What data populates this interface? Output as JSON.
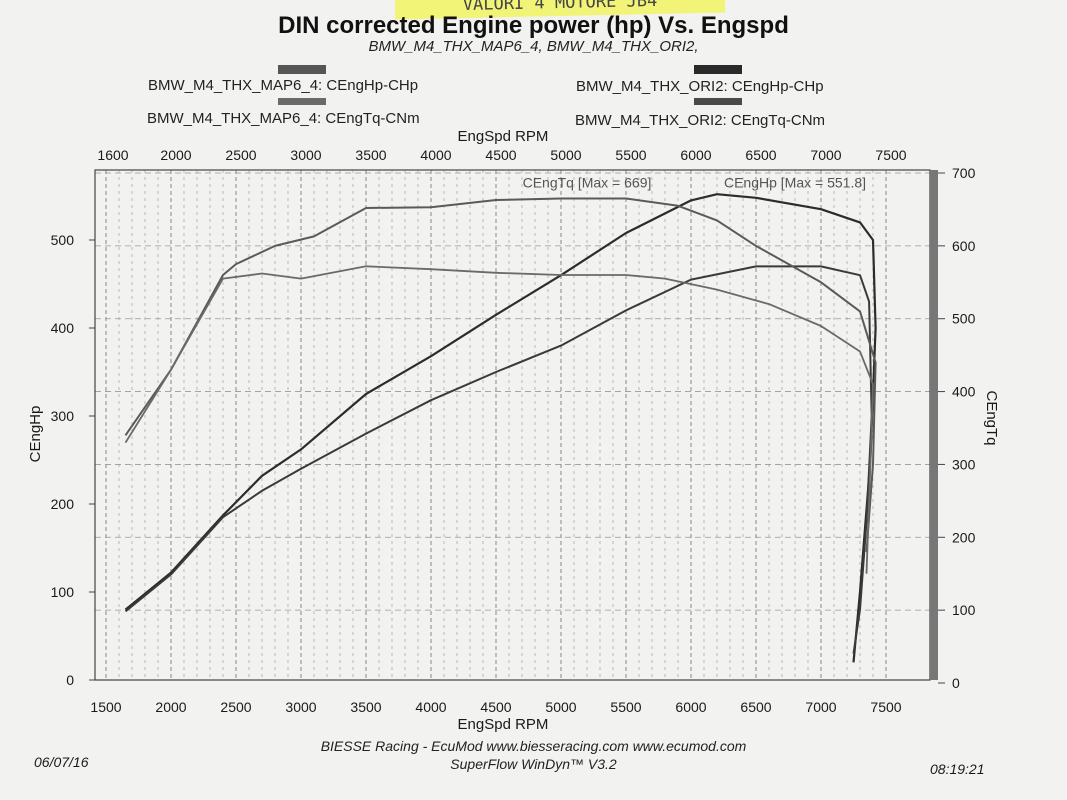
{
  "header": {
    "handwritten_note": "VALORI 4 MOTORE JB4",
    "title": "DIN corrected Engine power (hp) Vs. Engspd",
    "subtitle": "BMW_M4_THX_MAP6_4, BMW_M4_THX_ORI2,"
  },
  "legend": [
    {
      "label": "BMW_M4_THX_MAP6_4: CEngHp-CHp",
      "color": "#555555"
    },
    {
      "label": "BMW_M4_THX_ORI2: CEngHp-CHp",
      "color": "#2a2a2a"
    },
    {
      "label": "BMW_M4_THX_MAP6_4: CEngTq-CNm",
      "color": "#6a6a6a"
    },
    {
      "label": "BMW_M4_THX_ORI2: CEngTq-CNm",
      "color": "#4a4a4a"
    }
  ],
  "footer": {
    "line1": "BIESSE Racing - EcuMod www.biesseracing.com www.ecumod.com",
    "line2": "SuperFlow WinDyn™ V3.2",
    "date": "06/07/16",
    "time": "08:19:21"
  },
  "chart_data": {
    "type": "line",
    "xlabel": "EngSpd RPM",
    "ylabel": "CEngHp",
    "y2label": "CEngTq",
    "xlim": [
      1500,
      7500
    ],
    "ylim": [
      0,
      550
    ],
    "y2lim": [
      0,
      700
    ],
    "x_ticks": [
      1500,
      2000,
      2500,
      3000,
      3500,
      4000,
      4500,
      5000,
      5500,
      6000,
      6500,
      7000,
      7500
    ],
    "y_ticks": [
      0,
      100,
      200,
      300,
      400,
      500
    ],
    "y2_ticks": [
      0,
      100,
      200,
      300,
      400,
      500,
      600,
      700
    ],
    "grid": true,
    "annotations": [
      {
        "text": "CEngTq [Max = 669]",
        "x": 5200,
        "y2": 680
      },
      {
        "text": "CEngHp [Max = 551.8]",
        "x": 6800,
        "y2": 680
      }
    ],
    "series": [
      {
        "name": "BMW_M4_THX_MAP6_4: CEngHp-CHp",
        "axis": "left",
        "color": "#2c2c2c",
        "x": [
          1650,
          2000,
          2400,
          2700,
          3000,
          3500,
          4000,
          4500,
          5000,
          5500,
          6000,
          6200,
          6500,
          7000,
          7300,
          7400,
          7420,
          7380,
          7300,
          7250
        ],
        "y": [
          80,
          122,
          187,
          232,
          262,
          325,
          368,
          415,
          460,
          508,
          545,
          552,
          548,
          535,
          520,
          500,
          400,
          250,
          100,
          20
        ]
      },
      {
        "name": "BMW_M4_THX_ORI2: CEngHp-CHp",
        "axis": "left",
        "color": "#3a3a3a",
        "x": [
          1650,
          2000,
          2400,
          2700,
          3000,
          3500,
          4000,
          4500,
          5000,
          5500,
          6000,
          6500,
          7000,
          7300,
          7370,
          7390,
          7350,
          7300,
          7250
        ],
        "y": [
          78,
          120,
          185,
          215,
          240,
          280,
          318,
          350,
          380,
          420,
          455,
          470,
          470,
          460,
          430,
          300,
          180,
          80,
          30
        ]
      },
      {
        "name": "BMW_M4_THX_MAP6_4: CEngTq-CNm",
        "axis": "right",
        "color": "#5a5a5a",
        "x": [
          1650,
          2000,
          2400,
          2500,
          2800,
          3100,
          3500,
          4000,
          4500,
          5000,
          5500,
          5900,
          6200,
          6500,
          7000,
          7300,
          7420,
          7400,
          7350
        ],
        "y": [
          340,
          430,
          560,
          575,
          600,
          613,
          652,
          653,
          663,
          665,
          665,
          655,
          635,
          600,
          550,
          510,
          440,
          300,
          180
        ]
      },
      {
        "name": "BMW_M4_THX_ORI2: CEngTq-CNm",
        "axis": "right",
        "color": "#6a6a6a",
        "x": [
          1650,
          2000,
          2400,
          2700,
          3000,
          3500,
          4000,
          4500,
          5000,
          5500,
          5800,
          6200,
          6600,
          7000,
          7300,
          7400,
          7380,
          7350
        ],
        "y": [
          330,
          430,
          555,
          562,
          555,
          572,
          568,
          563,
          560,
          560,
          555,
          540,
          520,
          490,
          455,
          410,
          300,
          150
        ]
      }
    ]
  }
}
